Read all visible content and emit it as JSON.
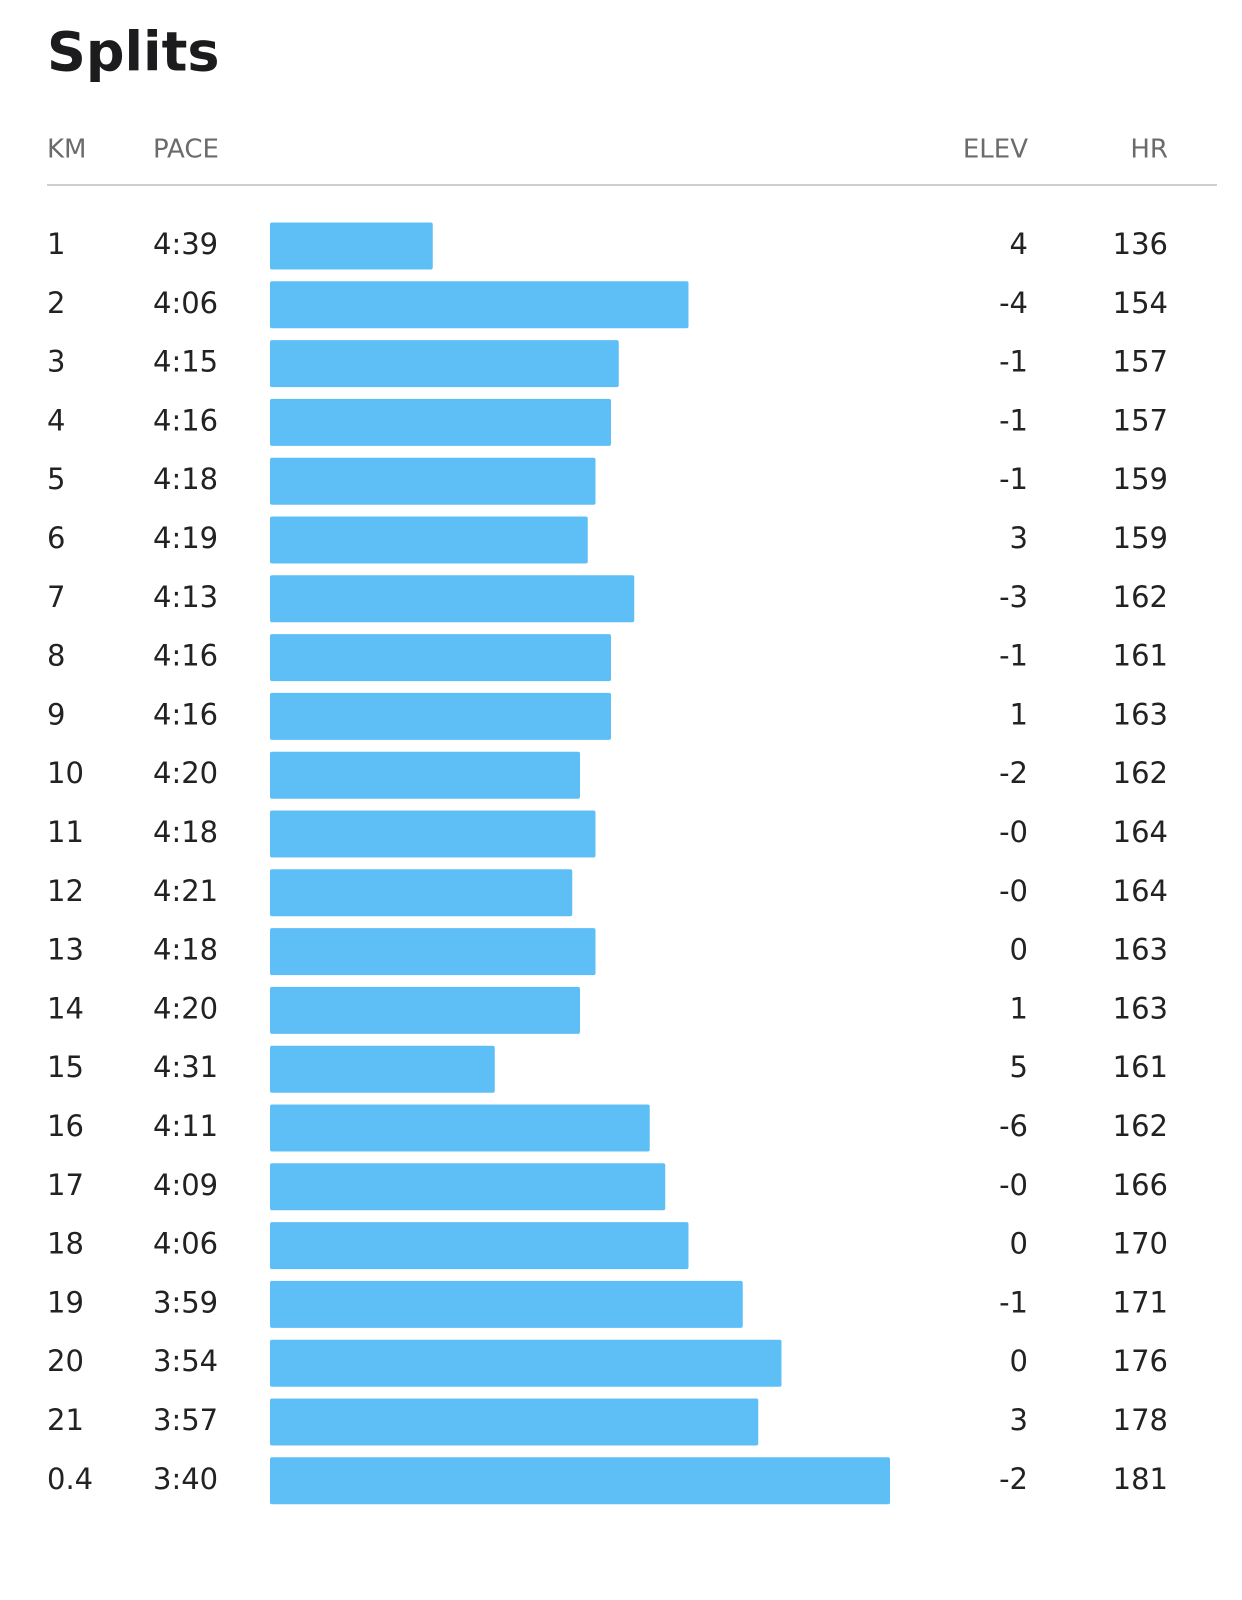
{
  "header": {
    "title": "Splits"
  },
  "table": {
    "columns": {
      "km": "KM",
      "pace": "PACE",
      "elev": "ELEV",
      "hr": "HR"
    },
    "bar_color": "#5ebff7",
    "rows": [
      {
        "km": "1",
        "pace": {
          "value": 279,
          "label": "4:39"
        },
        "elev": "4",
        "hr": 136
      },
      {
        "km": "2",
        "pace": {
          "value": 246,
          "label": "4:06"
        },
        "elev": "-4",
        "hr": 154
      },
      {
        "km": "3",
        "pace": {
          "value": 255,
          "label": "4:15"
        },
        "elev": "-1",
        "hr": 157
      },
      {
        "km": "4",
        "pace": {
          "value": 256,
          "label": "4:16"
        },
        "elev": "-1",
        "hr": 157
      },
      {
        "km": "5",
        "pace": {
          "value": 258,
          "label": "4:18"
        },
        "elev": "-1",
        "hr": 159
      },
      {
        "km": "6",
        "pace": {
          "value": 259,
          "label": "4:19"
        },
        "elev": "3",
        "hr": 159
      },
      {
        "km": "7",
        "pace": {
          "value": 253,
          "label": "4:13"
        },
        "elev": "-3",
        "hr": 162
      },
      {
        "km": "8",
        "pace": {
          "value": 256,
          "label": "4:16"
        },
        "elev": "-1",
        "hr": 161
      },
      {
        "km": "9",
        "pace": {
          "value": 256,
          "label": "4:16"
        },
        "elev": "1",
        "hr": 163
      },
      {
        "km": "10",
        "pace": {
          "value": 260,
          "label": "4:20"
        },
        "elev": "-2",
        "hr": 162
      },
      {
        "km": "11",
        "pace": {
          "value": 258,
          "label": "4:18"
        },
        "elev": "-0",
        "hr": 164
      },
      {
        "km": "12",
        "pace": {
          "value": 261,
          "label": "4:21"
        },
        "elev": "-0",
        "hr": 164
      },
      {
        "km": "13",
        "pace": {
          "value": 258,
          "label": "4:18"
        },
        "elev": "0",
        "hr": 163
      },
      {
        "km": "14",
        "pace": {
          "value": 260,
          "label": "4:20"
        },
        "elev": "1",
        "hr": 163
      },
      {
        "km": "15",
        "pace": {
          "value": 271,
          "label": "4:31"
        },
        "elev": "5",
        "hr": 161
      },
      {
        "km": "16",
        "pace": {
          "value": 251,
          "label": "4:11"
        },
        "elev": "-6",
        "hr": 162
      },
      {
        "km": "17",
        "pace": {
          "value": 249,
          "label": "4:09"
        },
        "elev": "-0",
        "hr": 166
      },
      {
        "km": "18",
        "pace": {
          "value": 246,
          "label": "4:06"
        },
        "elev": "0",
        "hr": 170
      },
      {
        "km": "19",
        "pace": {
          "value": 239,
          "label": "3:59"
        },
        "elev": "-1",
        "hr": 171
      },
      {
        "km": "20",
        "pace": {
          "value": 234,
          "label": "3:54"
        },
        "elev": "0",
        "hr": 176
      },
      {
        "km": "21",
        "pace": {
          "value": 237,
          "label": "3:57"
        },
        "elev": "3",
        "hr": 178
      },
      {
        "km": "0.4",
        "pace": {
          "value": 220,
          "label": "3:40"
        },
        "elev": "-2",
        "hr": 181
      }
    ]
  }
}
